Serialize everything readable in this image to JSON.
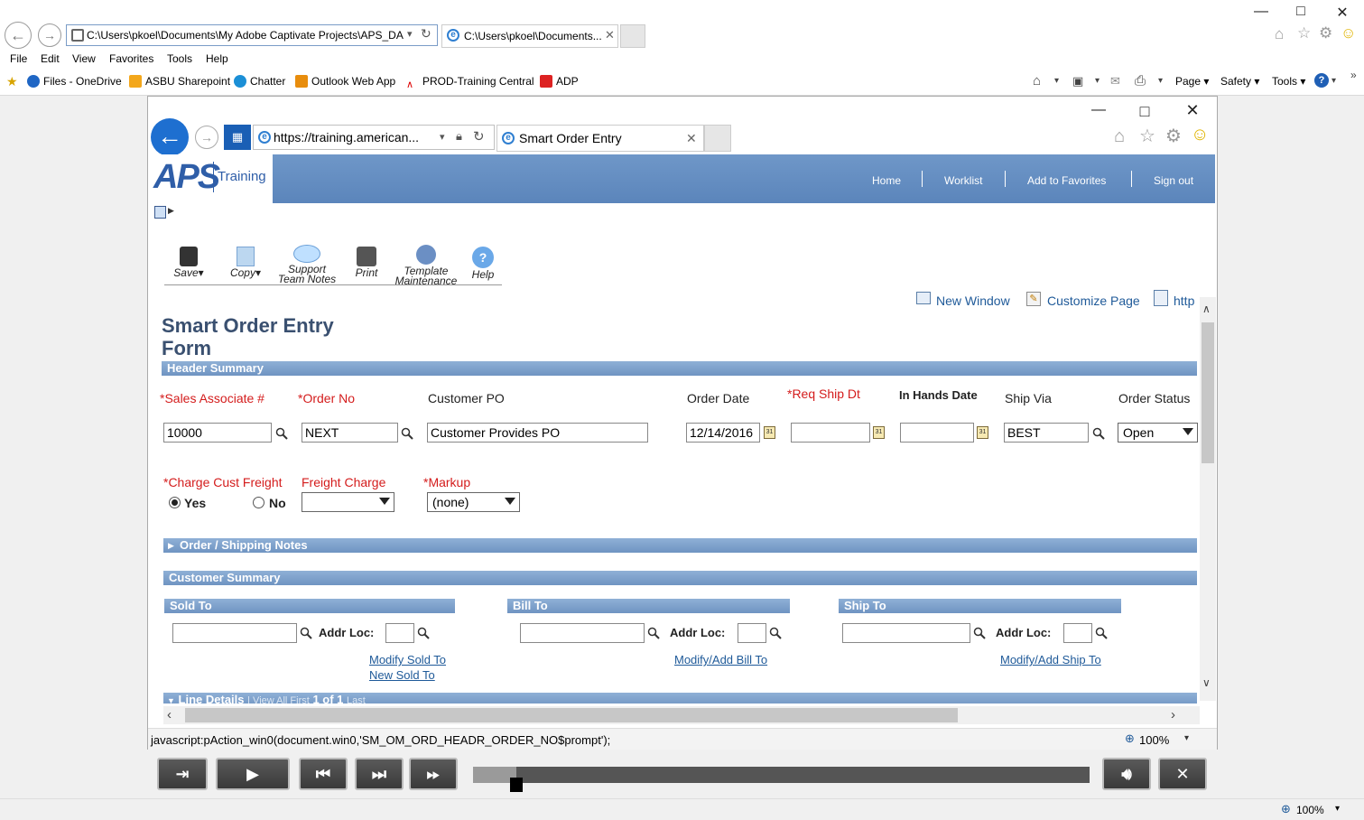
{
  "outer_browser": {
    "address": "C:\\Users\\pkoel\\Documents\\My Adobe Captivate Projects\\APS_DA",
    "tab_title": "C:\\Users\\pkoel\\Documents...",
    "menu": [
      "File",
      "Edit",
      "View",
      "Favorites",
      "Tools",
      "Help"
    ],
    "favorites": [
      "Files - OneDrive",
      "ASBU Sharepoint",
      "Chatter",
      "Outlook Web App",
      "PROD-Training Central",
      "ADP"
    ],
    "commands": [
      "Page ▾",
      "Safety ▾",
      "Tools ▾"
    ],
    "zoom": "100%"
  },
  "inner_browser": {
    "address": "https://training.american...",
    "tab_title": "Smart Order Entry",
    "status_text": "javascript:pAction_win0(document.win0,'SM_OM_ORD_HEADR_ORDER_NO$prompt');",
    "zoom": "100%"
  },
  "app": {
    "logo": "APS",
    "logo_sub": "Training",
    "nav": [
      "Home",
      "Worklist",
      "Add to Favorites",
      "Sign out"
    ],
    "toolbar": {
      "save": "Save",
      "copy": "Copy",
      "support1": "Support",
      "support2": "Team Notes",
      "print": "Print",
      "template1": "Template",
      "template2": "Maintenance",
      "help": "Help"
    },
    "links": {
      "new_window": "New Window",
      "customize": "Customize Page",
      "http": "http"
    },
    "page_title_1": "Smart Order Entry",
    "page_title_2": "Form",
    "header_summary": "Header Summary",
    "labels": {
      "sales_assoc": "*Sales Associate #",
      "order_no": "*Order No",
      "customer_po": "Customer PO",
      "order_date": "Order Date",
      "req_ship": "*Req Ship Dt",
      "in_hands": "In Hands Date",
      "ship_via": "Ship Via",
      "order_status": "Order Status",
      "charge_freight": "*Charge Cust Freight",
      "freight_charge": "Freight Charge",
      "markup": "*Markup",
      "yes": "Yes",
      "no": "No"
    },
    "values": {
      "sales_assoc": "10000",
      "order_no": "NEXT",
      "customer_po": "Customer Provides PO",
      "order_date": "12/14/2016",
      "req_ship": "",
      "in_hands": "",
      "ship_via": "BEST",
      "order_status": "Open",
      "freight_charge": "",
      "markup": "(none)"
    },
    "order_notes": "Order / Shipping Notes",
    "customer_summary": "Customer Summary",
    "sold_to": "Sold To",
    "bill_to": "Bill To",
    "ship_to": "Ship To",
    "addr_loc": "Addr Loc:",
    "modify_sold": "Modify Sold To",
    "new_sold": "New Sold To",
    "modify_bill": "Modify/Add Bill To",
    "modify_ship": "Modify/Add Ship To",
    "line_details": "Line Details",
    "line_nav": "| View All   First",
    "line_count": "1 of 1",
    "line_last": "Last"
  },
  "player": {
    "progress": 0.07
  },
  "colors": {
    "band": "#5b85bb",
    "required": "#d41c1c",
    "link": "#1f5a99"
  }
}
